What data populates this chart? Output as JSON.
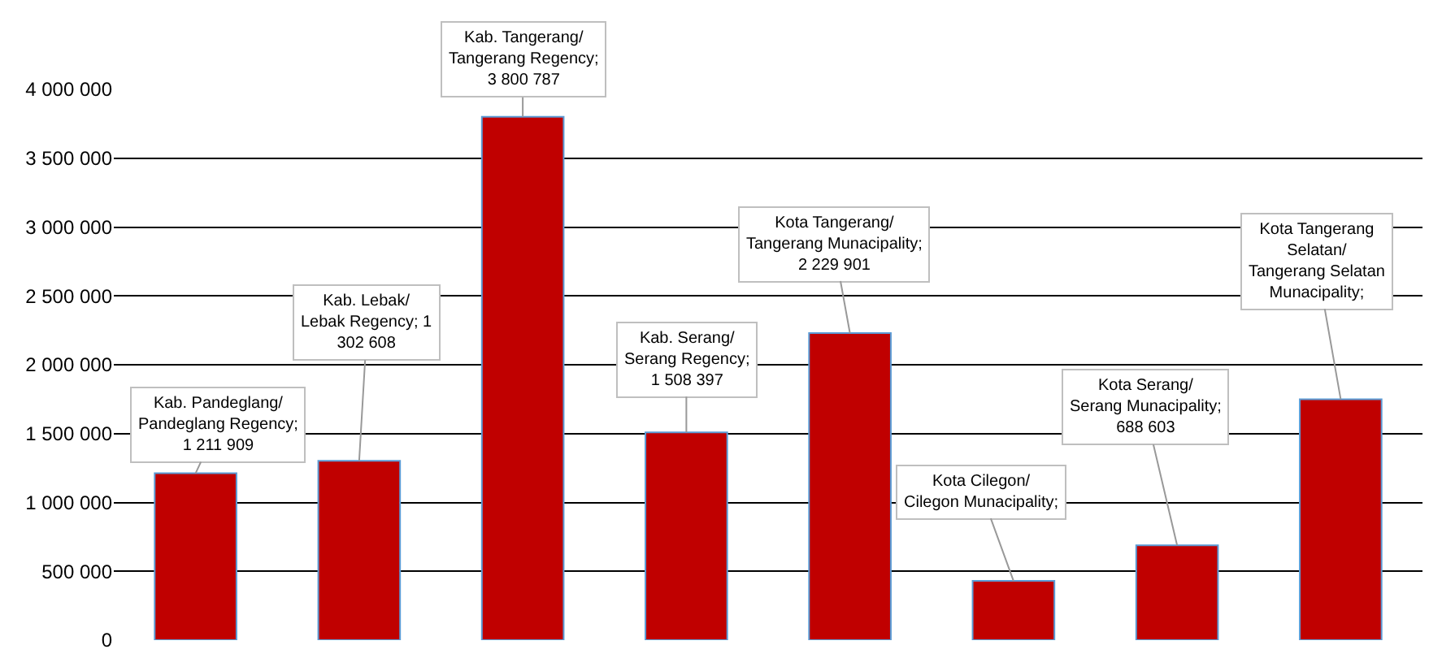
{
  "chart_data": {
    "type": "bar",
    "categories": [
      null,
      null,
      null,
      null,
      null,
      null,
      null,
      null
    ],
    "values": [
      1211909,
      1302608,
      3800787,
      1508397,
      2229901,
      430000,
      688603,
      1750000
    ],
    "color": "#c00000",
    "value_labels": [
      "Kab. Pandeglang/\nPandeglang Regency;\n1 211 909",
      "Kab. Lebak/\nLebak Regency; 1\n302 608",
      "Kab. Tangerang/\nTangerang Regency;\n3 800 787",
      "Kab. Serang/\nSerang Regency;\n1 508 397",
      "Kota Tangerang/\nTangerang Munacipality;\n2 229 901",
      "Kota Cilegon/\nCilegon Munacipality;",
      "Kota Serang/\nSerang Munacipality;\n688 603",
      "Kota Tangerang\nSelatan/\nTangerang Selatan\nMunacipality;"
    ],
    "ylim": [
      0,
      4000000
    ],
    "yticks": [
      {
        "value": 0,
        "label": "0"
      },
      {
        "value": 500000,
        "label": "500 000"
      },
      {
        "value": 1000000,
        "label": "1 000 000"
      },
      {
        "value": 1500000,
        "label": "1 500 000"
      },
      {
        "value": 2000000,
        "label": "2 000 000"
      },
      {
        "value": 2500000,
        "label": "2 500 000"
      },
      {
        "value": 3000000,
        "label": "3 000 000"
      },
      {
        "value": 3500000,
        "label": "3 500 000"
      },
      {
        "value": 4000000,
        "label": "4 000 000"
      }
    ],
    "grid": "y"
  }
}
